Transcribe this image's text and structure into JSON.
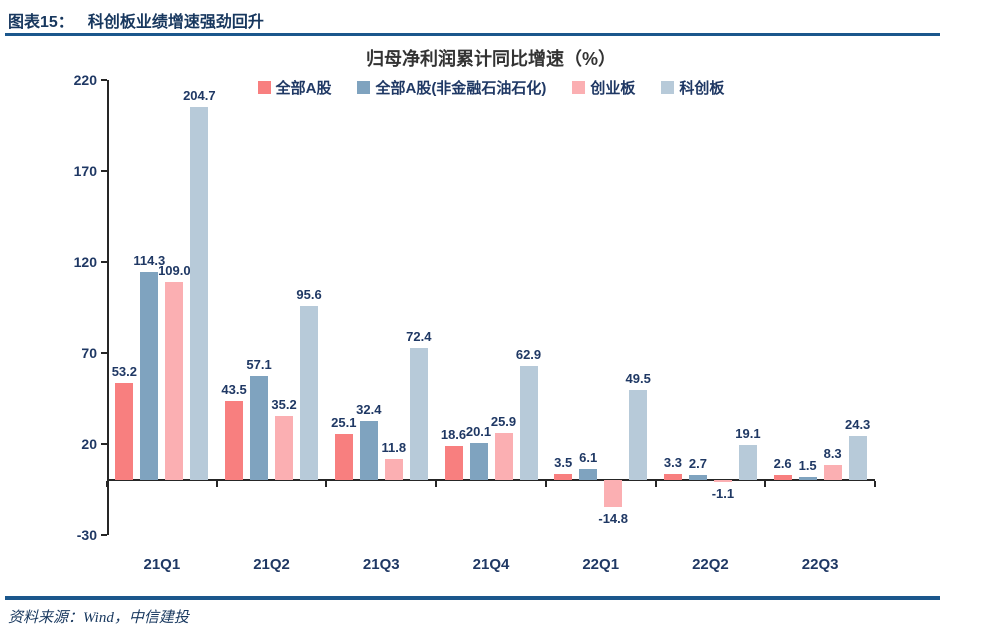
{
  "header": {
    "tag": "图表15：",
    "title": "科创板业绩增速强劲回升"
  },
  "footer": {
    "source": "资料来源：Wind，中信建投"
  },
  "colors": {
    "rule": "#1B578C",
    "header_text": "#17375E",
    "axis": "#262626",
    "label_text": "#1F3864",
    "title_text": "#333333"
  },
  "chart_data": {
    "type": "bar",
    "title": "归母净利润累计同比增速（%）",
    "categories": [
      "21Q1",
      "21Q2",
      "21Q3",
      "21Q4",
      "22Q1",
      "22Q2",
      "22Q3"
    ],
    "series": [
      {
        "name": "全部A股",
        "color": "#F87F7F",
        "values": [
          53.2,
          43.5,
          25.1,
          18.6,
          3.5,
          3.3,
          2.6
        ]
      },
      {
        "name": "全部A股(非金融石油石化)",
        "color": "#7FA3BF",
        "values": [
          114.3,
          57.1,
          32.4,
          20.1,
          6.1,
          2.7,
          1.5
        ]
      },
      {
        "name": "创业板",
        "color": "#FBAFB2",
        "values": [
          109.0,
          35.2,
          11.8,
          25.9,
          -14.8,
          -1.1,
          8.3
        ]
      },
      {
        "name": "科创板",
        "color": "#B7CAD9",
        "values": [
          204.7,
          95.6,
          72.4,
          62.9,
          49.5,
          19.1,
          24.3
        ]
      }
    ],
    "yticks": [
      220,
      170,
      120,
      70,
      20,
      -30
    ],
    "ylim": [
      -30,
      220
    ],
    "data_labels": true,
    "label_decimals": 1,
    "grid": false,
    "legend_position": "top"
  }
}
